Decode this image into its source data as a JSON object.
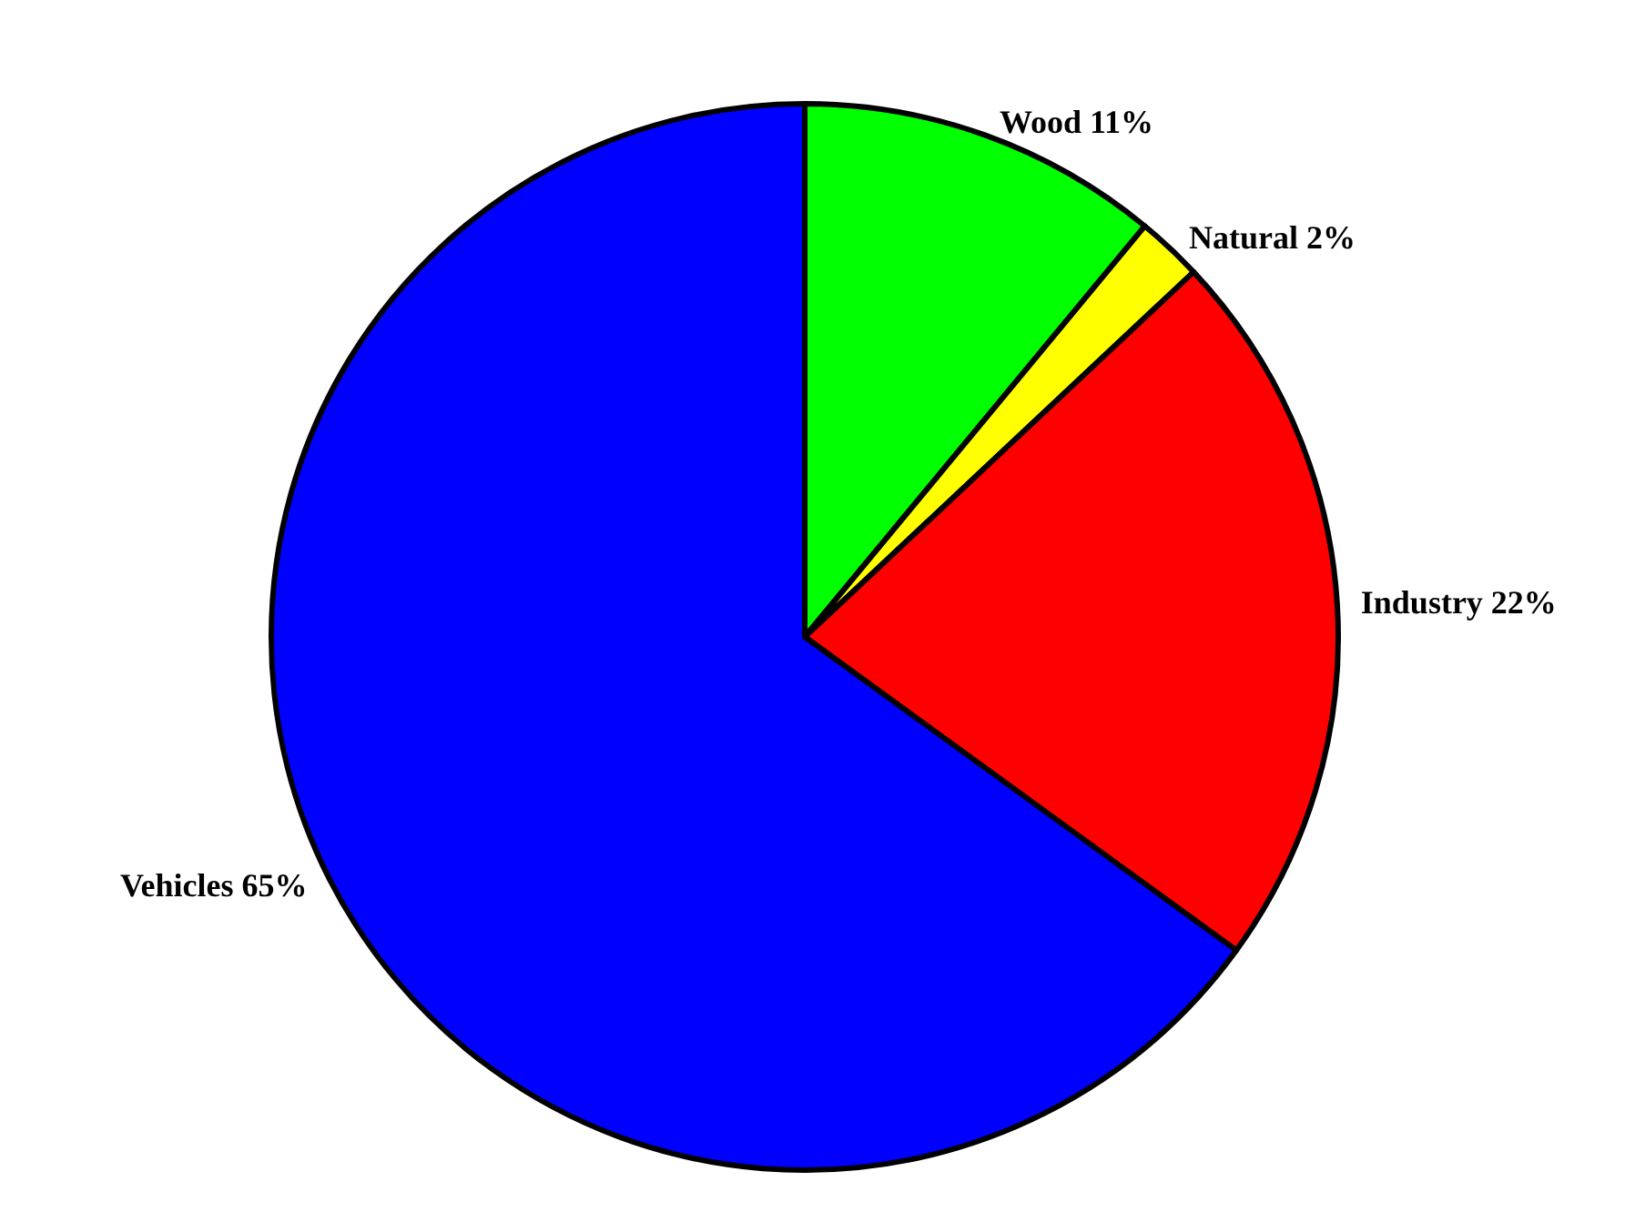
{
  "chart_data": {
    "type": "pie",
    "categories": [
      "Wood",
      "Natural",
      "Industry",
      "Vehicles"
    ],
    "values": [
      11,
      2,
      22,
      65
    ],
    "colors": [
      "#00ff00",
      "#ffff00",
      "#ff0000",
      "#0000ff"
    ],
    "value_labels": [
      "11%",
      "2%",
      "22%",
      "65%"
    ],
    "legend": false
  }
}
